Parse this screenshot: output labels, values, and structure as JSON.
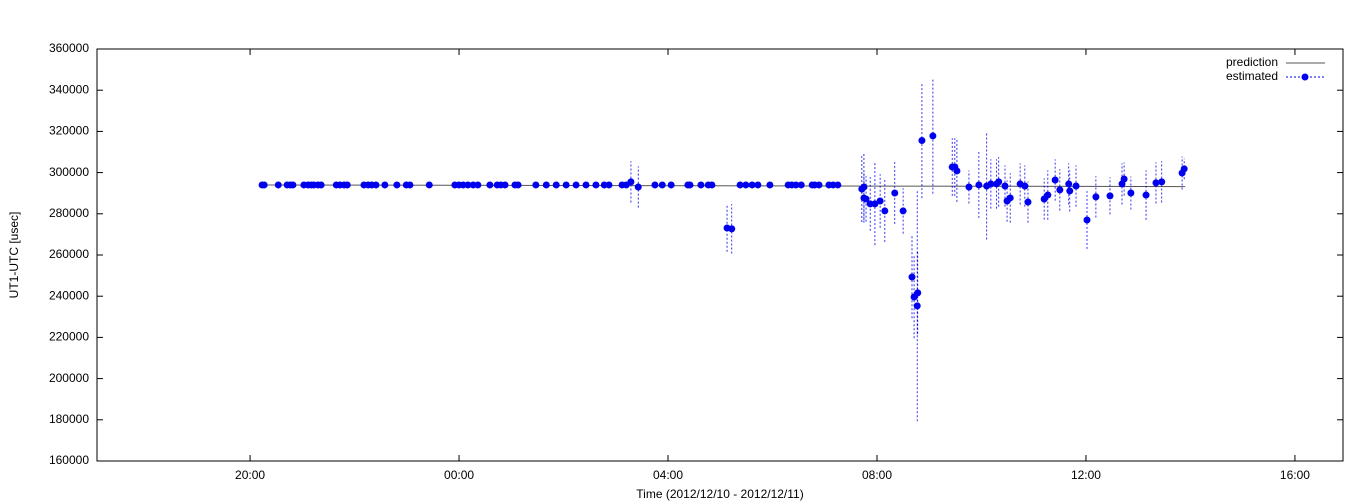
{
  "chart_data": {
    "type": "scatter",
    "xlabel": "Time (2012/12/10 - 2012/12/11)",
    "ylabel": "UT1-UTC [usec]",
    "xlim": [
      17.07,
      40.92
    ],
    "xticks": [
      {
        "value": 20,
        "label": "20:00"
      },
      {
        "value": 24,
        "label": "00:00"
      },
      {
        "value": 28,
        "label": "04:00"
      },
      {
        "value": 32,
        "label": "08:00"
      },
      {
        "value": 36,
        "label": "12:00"
      },
      {
        "value": 40,
        "label": "16:00"
      }
    ],
    "ylim": [
      160000,
      360000
    ],
    "yticks": [
      160000,
      180000,
      200000,
      220000,
      240000,
      260000,
      280000,
      300000,
      320000,
      340000,
      360000
    ],
    "legend": "top right",
    "series": [
      {
        "name": "prediction",
        "color": "#555555",
        "x": [
          20.2,
          37.9
        ],
        "values": [
          294000,
          293200
        ]
      },
      {
        "name": "estimated",
        "color": "#0000ee",
        "x": [
          20.23,
          20.27,
          20.54,
          20.71,
          20.77,
          20.82,
          21.03,
          21.11,
          21.17,
          21.22,
          21.3,
          21.36,
          21.65,
          21.72,
          21.8,
          21.86,
          22.18,
          22.26,
          22.33,
          22.41,
          22.58,
          22.81,
          22.99,
          23.06,
          23.43,
          23.92,
          24.0,
          24.08,
          24.17,
          24.27,
          24.36,
          24.59,
          24.73,
          24.8,
          24.88,
          25.07,
          25.13,
          25.47,
          25.67,
          25.86,
          26.05,
          26.24,
          26.43,
          26.62,
          26.78,
          26.87,
          27.12,
          27.2,
          27.29,
          27.43,
          27.75,
          27.89,
          28.06,
          28.38,
          28.42,
          28.63,
          28.77,
          28.84,
          29.13,
          29.22,
          29.38,
          29.49,
          29.61,
          29.72,
          29.95,
          30.3,
          30.37,
          30.45,
          30.55,
          30.76,
          30.81,
          30.89,
          31.08,
          31.16,
          31.25,
          31.71,
          31.75,
          31.75,
          31.79,
          31.87,
          31.96,
          32.06,
          32.15,
          32.34,
          32.5,
          32.67,
          32.71,
          32.77,
          32.78,
          32.86,
          33.07,
          33.44,
          33.49,
          33.53,
          33.76,
          33.95,
          34.1,
          34.18,
          34.29,
          34.33,
          34.45,
          34.49,
          34.55,
          34.74,
          34.83,
          34.89,
          35.2,
          35.27,
          35.41,
          35.5,
          35.67,
          35.69,
          35.81,
          36.02,
          36.19,
          36.46,
          36.69,
          36.73,
          36.86,
          37.15,
          37.34,
          37.45,
          37.84,
          37.88
        ],
        "values": [
          294000,
          294000,
          294000,
          294000,
          294000,
          294000,
          294000,
          294000,
          294000,
          294000,
          294000,
          294000,
          294000,
          294000,
          294000,
          294000,
          294000,
          294000,
          294000,
          294000,
          294000,
          294000,
          294000,
          294000,
          294000,
          294000,
          294000,
          294000,
          294000,
          294000,
          294000,
          294000,
          294000,
          294000,
          294000,
          294000,
          294000,
          294000,
          294000,
          294000,
          294000,
          294000,
          294000,
          294000,
          294000,
          294000,
          294000,
          294000,
          295500,
          293000,
          294000,
          294000,
          294000,
          294000,
          294000,
          294000,
          294000,
          294000,
          273100,
          272700,
          294000,
          294000,
          294000,
          294000,
          294000,
          294000,
          294000,
          294000,
          294000,
          294000,
          294000,
          294000,
          294000,
          294000,
          294000,
          292000,
          293000,
          287700,
          287200,
          284800,
          284800,
          286200,
          281400,
          290100,
          281400,
          249300,
          239600,
          235300,
          241600,
          315600,
          317800,
          302700,
          302700,
          300800,
          293000,
          294000,
          293500,
          294500,
          294500,
          295500,
          293500,
          286200,
          287700,
          294500,
          293500,
          285700,
          287200,
          289100,
          296400,
          291600,
          294500,
          291100,
          293500,
          277000,
          288200,
          288700,
          294500,
          296900,
          290100,
          289100,
          295000,
          295500,
          299800,
          301800
        ],
        "errors": [
          500,
          500,
          500,
          500,
          500,
          500,
          500,
          500,
          500,
          500,
          500,
          500,
          500,
          500,
          500,
          500,
          500,
          500,
          500,
          500,
          500,
          500,
          500,
          500,
          500,
          500,
          500,
          500,
          500,
          500,
          500,
          500,
          500,
          500,
          500,
          500,
          500,
          500,
          500,
          500,
          500,
          500,
          500,
          500,
          500,
          500,
          500,
          500,
          10000,
          10000,
          500,
          500,
          500,
          500,
          500,
          500,
          500,
          500,
          11500,
          12000,
          500,
          500,
          500,
          500,
          500,
          500,
          500,
          500,
          500,
          500,
          500,
          500,
          500,
          500,
          500,
          16000,
          16000,
          12000,
          11000,
          13000,
          20000,
          13000,
          15000,
          15000,
          11000,
          20000,
          20000,
          56000,
          20000,
          28000,
          28000,
          14000,
          14000,
          15000,
          8000,
          16000,
          26000,
          12000,
          12000,
          12000,
          10000,
          10000,
          12000,
          10000,
          10000,
          10000,
          10000,
          12000,
          10000,
          10000,
          10000,
          10000,
          10000,
          14000,
          10000,
          9000,
          10000,
          8000,
          8000,
          12000,
          10000,
          10000,
          8000,
          5000
        ]
      }
    ]
  }
}
